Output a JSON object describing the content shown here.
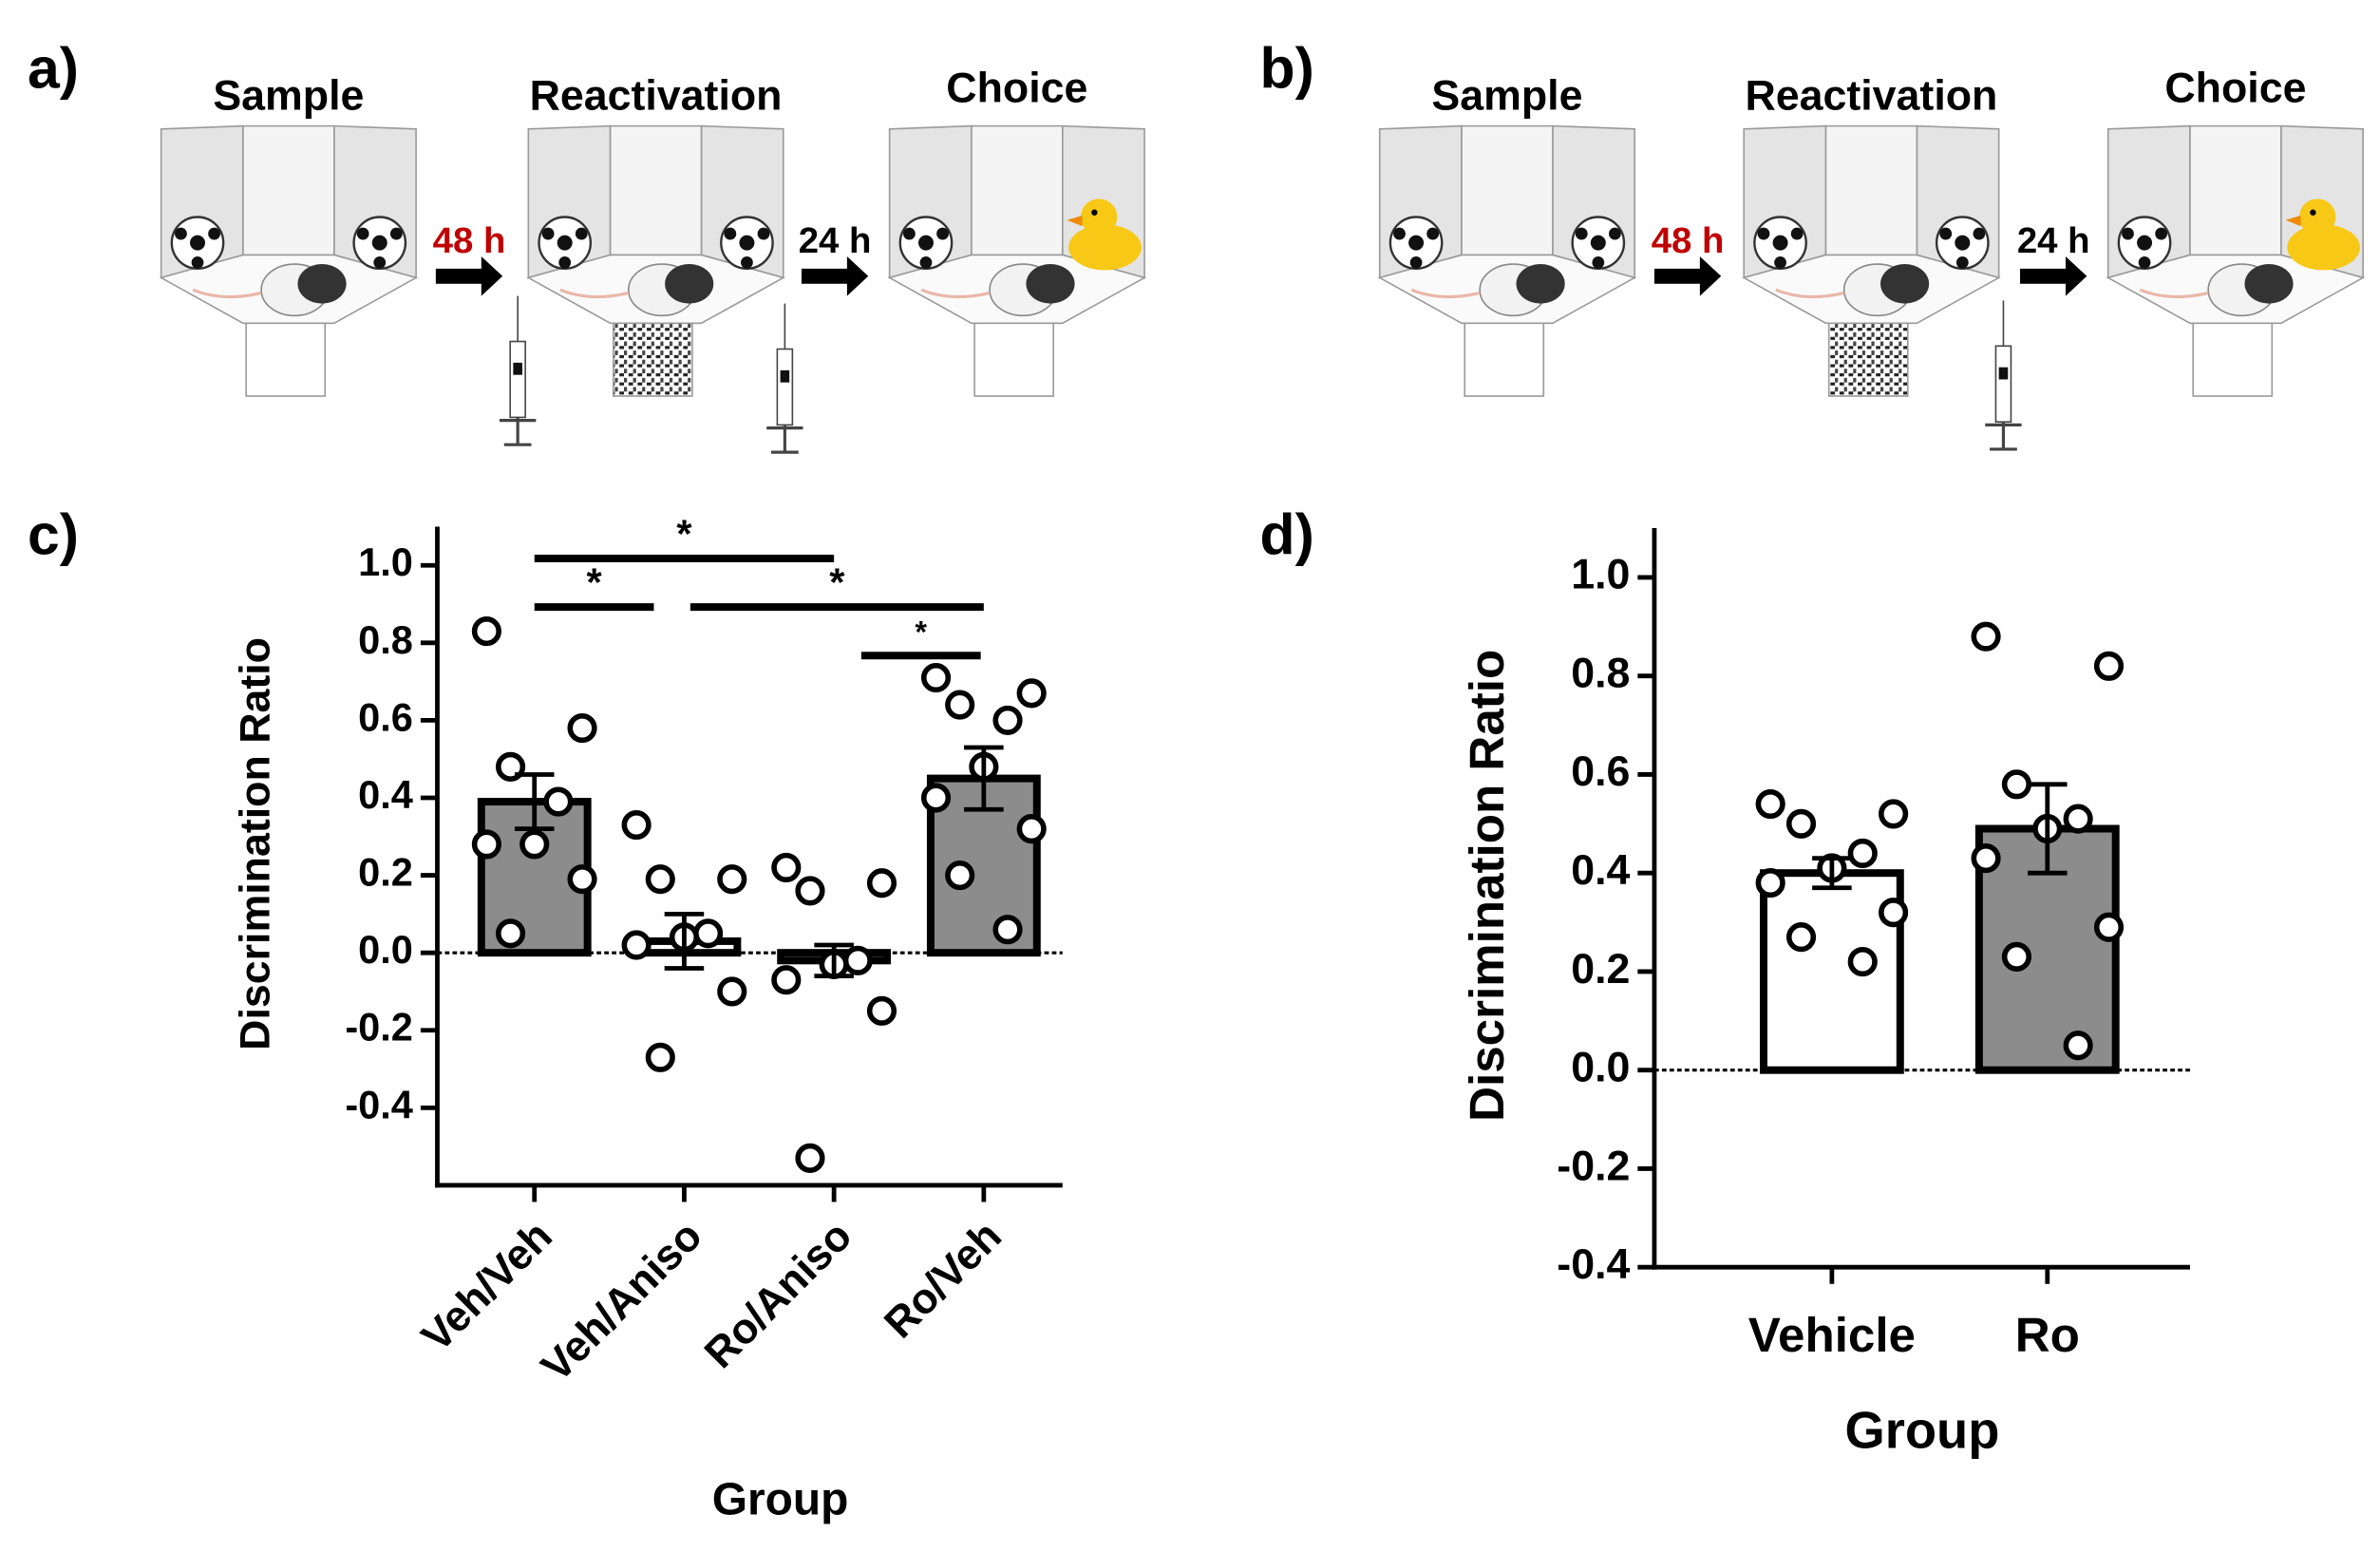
{
  "panels": {
    "a": "a)",
    "b": "b)",
    "c": "c)",
    "d": "d)"
  },
  "diagram_a": {
    "stages": [
      "Sample",
      "Reactivation",
      "Choice"
    ],
    "delays": [
      "48 h",
      "24 h"
    ]
  },
  "diagram_b": {
    "stages": [
      "Sample",
      "Reactivation",
      "Choice"
    ],
    "delays": [
      "48 h",
      "24 h"
    ]
  },
  "chart_data": [
    {
      "type": "bar",
      "y_label": "Discrimination Ratio",
      "x_label": "Group",
      "categories": [
        "Veh/Veh",
        "Veh/Aniso",
        "Ro/Aniso",
        "Ro/Veh"
      ],
      "values": [
        0.39,
        0.03,
        -0.02,
        0.45
      ],
      "errors": [
        0.07,
        0.07,
        0.04,
        0.08
      ],
      "colors": [
        "#8c8c8c",
        "#ffffff",
        "#ffffff",
        "#8c8c8c"
      ],
      "points": [
        [
          0.83,
          0.58,
          0.48,
          0.39,
          0.28,
          0.28,
          0.19,
          0.05
        ],
        [
          0.33,
          0.19,
          0.19,
          0.05,
          0.04,
          0.02,
          -0.1,
          -0.27
        ],
        [
          0.22,
          0.18,
          0.16,
          -0.02,
          -0.03,
          -0.07,
          -0.15,
          -0.53
        ],
        [
          0.71,
          0.67,
          0.64,
          0.6,
          0.48,
          0.4,
          0.32,
          0.2,
          0.06
        ]
      ],
      "significance": [
        {
          "from": "Veh/Veh",
          "to": "Ro/Aniso",
          "label": "*"
        },
        {
          "from": "Veh/Veh",
          "to": "Veh/Aniso",
          "label": "*"
        },
        {
          "from": "Veh/Aniso",
          "to": "Ro/Veh",
          "label": "*"
        },
        {
          "from": "Ro/Aniso",
          "to": "Ro/Veh",
          "label": "*"
        }
      ],
      "ylim": [
        -0.6,
        1.1
      ],
      "yticks": [
        -0.4,
        -0.2,
        {
          "value": 0,
          "label": "0.0"
        },
        0.2,
        0.4,
        0.6,
        0.8,
        {
          "value": 1,
          "label": "1.0"
        }
      ]
    },
    {
      "type": "bar",
      "y_label": "Discrimination Ratio",
      "x_label": "Group",
      "categories": [
        "Vehicle",
        "Ro"
      ],
      "values": [
        0.4,
        0.49
      ],
      "errors": [
        0.03,
        0.09
      ],
      "colors": [
        "#ffffff",
        "#8c8c8c"
      ],
      "points": [
        [
          0.54,
          0.52,
          0.5,
          0.44,
          0.41,
          0.38,
          0.32,
          0.27,
          0.22
        ],
        [
          0.88,
          0.82,
          0.58,
          0.51,
          0.49,
          0.43,
          0.29,
          0.23,
          0.05
        ]
      ],
      "ylim": [
        -0.4,
        1.1
      ],
      "yticks": [
        -0.4,
        -0.2,
        {
          "value": 0,
          "label": "0.0"
        },
        0.2,
        0.4,
        0.6,
        0.8,
        {
          "value": 1,
          "label": "1.0"
        }
      ]
    }
  ]
}
